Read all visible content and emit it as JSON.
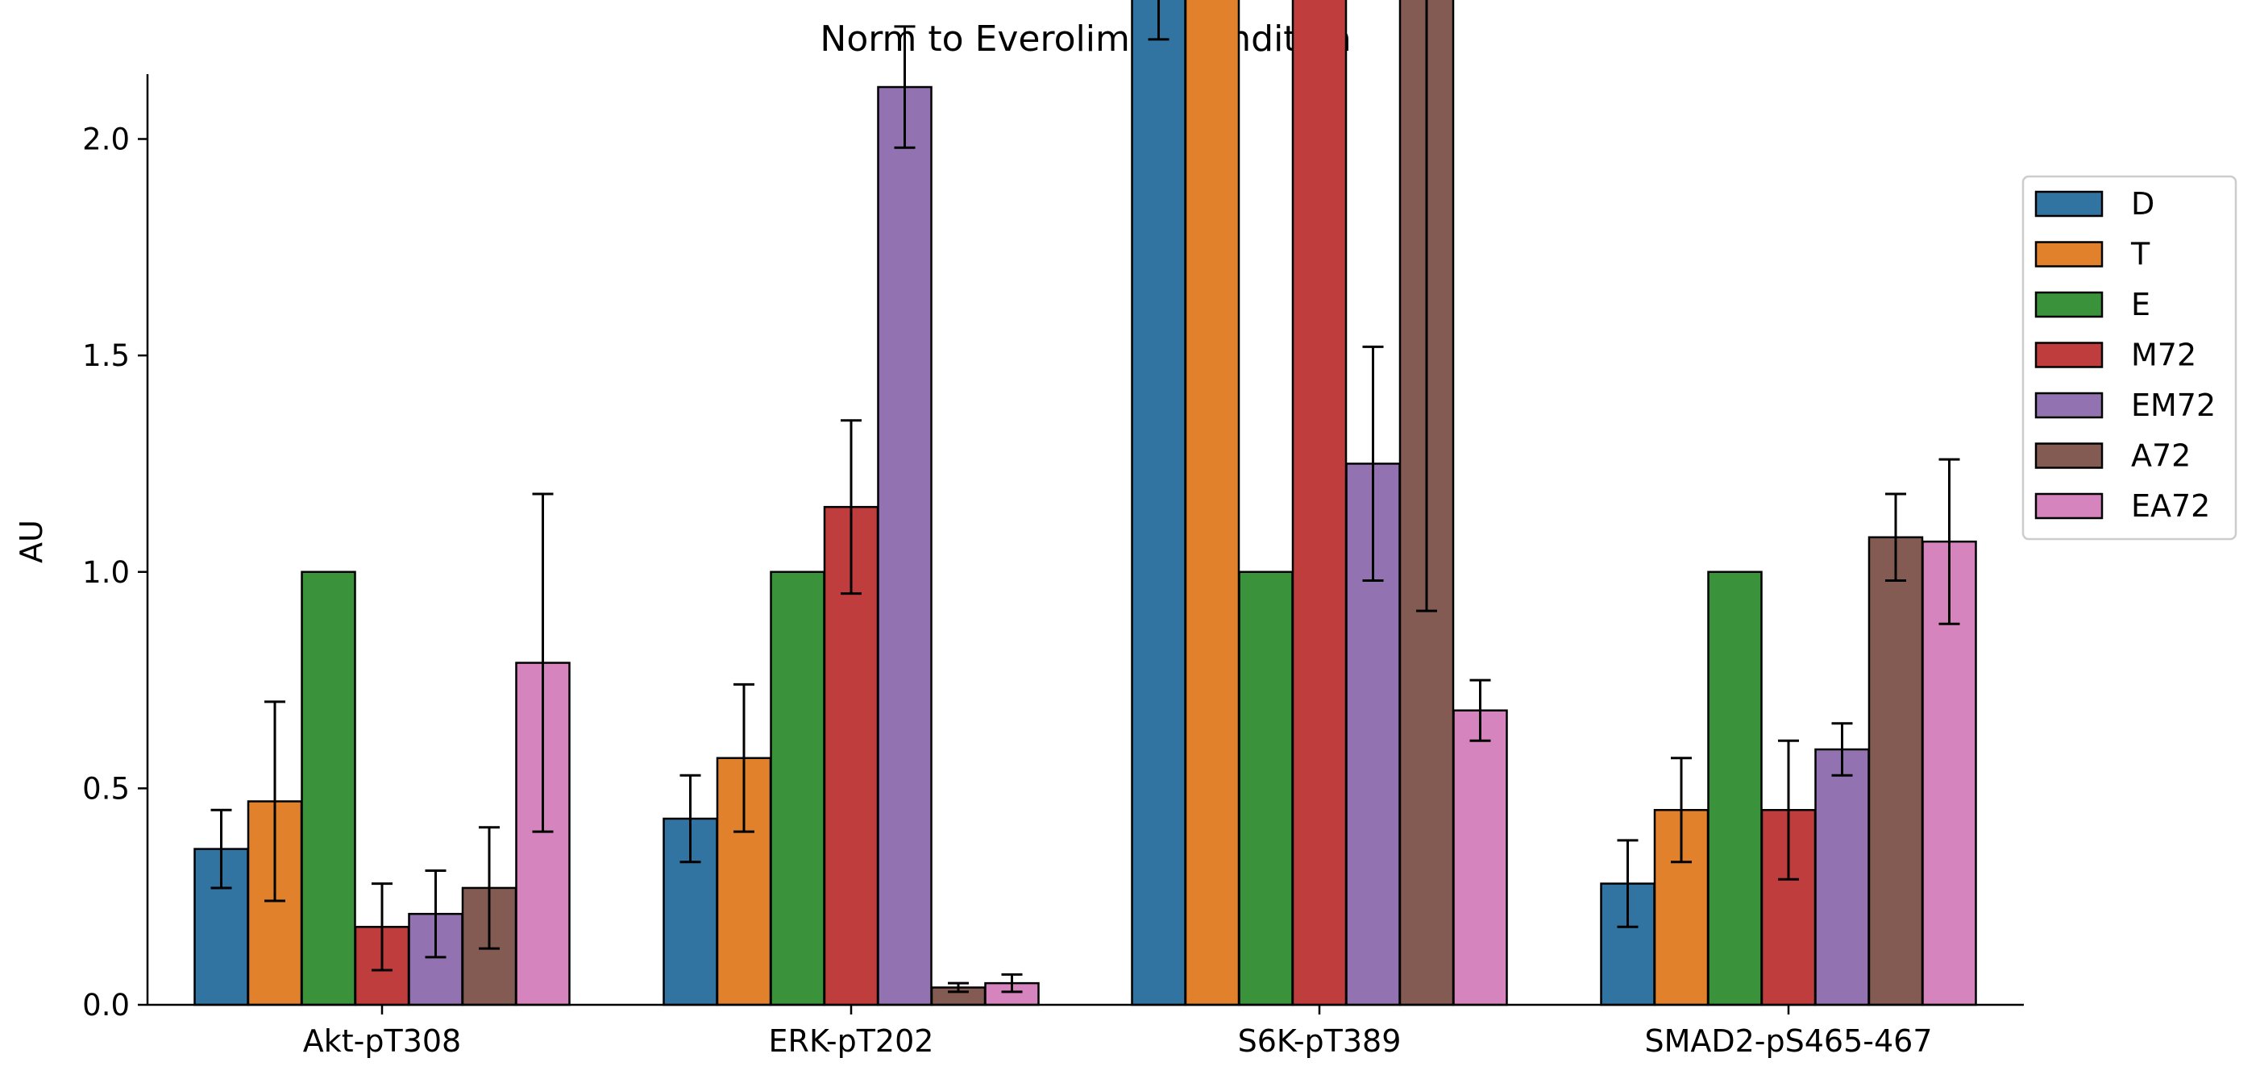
{
  "chart_data": {
    "type": "bar",
    "title": "Norm to Everolimus Condition",
    "xlabel": "",
    "ylabel": "AU",
    "ylim": [
      0,
      4.3
    ],
    "yticks": [
      "0.0",
      "0.5",
      "1.0",
      "1.5",
      "2.0",
      "2.5",
      "3.0",
      "3.5",
      "4.0"
    ],
    "categories": [
      "Akt-pT308",
      "ERK-pT202",
      "S6K-pT389",
      "SMAD2-pS465-467"
    ],
    "legend_position": "right",
    "grid": false,
    "series": [
      {
        "name": "D",
        "color": "#3274a1",
        "values": [
          0.36,
          0.43,
          2.87,
          0.28
        ],
        "errors": [
          0.09,
          0.1,
          0.64,
          0.1
        ]
      },
      {
        "name": "T",
        "color": "#e1812c",
        "values": [
          0.47,
          0.57,
          3.14,
          0.45
        ],
        "errors": [
          0.23,
          0.17,
          0.72,
          0.12
        ]
      },
      {
        "name": "E",
        "color": "#3a923a",
        "values": [
          1.0,
          1.0,
          1.0,
          1.0
        ],
        "errors": [
          0,
          0,
          0,
          0
        ]
      },
      {
        "name": "M72",
        "color": "#c03d3e",
        "values": [
          0.18,
          1.15,
          2.44,
          0.45
        ],
        "errors": [
          0.1,
          0.2,
          0.07,
          0.16
        ]
      },
      {
        "name": "EM72",
        "color": "#9372b2",
        "values": [
          0.21,
          2.12,
          1.25,
          0.59
        ],
        "errors": [
          0.1,
          0.14,
          0.27,
          0.06
        ]
      },
      {
        "name": "A72",
        "color": "#845b53",
        "values": [
          0.27,
          0.04,
          2.51,
          1.08
        ],
        "errors": [
          0.14,
          0.01,
          1.6,
          0.1
        ]
      },
      {
        "name": "EA72",
        "color": "#d684bd",
        "values": [
          0.79,
          0.05,
          0.68,
          1.07
        ],
        "errors": [
          0.39,
          0.02,
          0.07,
          0.19
        ]
      }
    ]
  }
}
